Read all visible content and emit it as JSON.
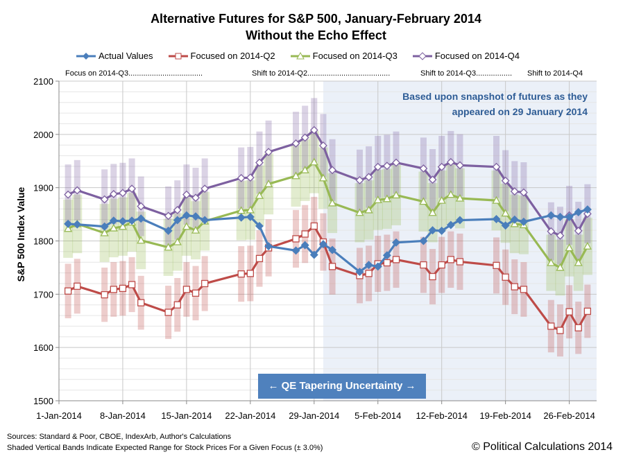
{
  "chart_data": {
    "type": "line",
    "title": "Alternative Futures for S&P 500, January-February 2014",
    "subtitle": "Without the Echo Effect",
    "ylabel": "S&P 500 Index Value",
    "xlabel": "",
    "ylim": [
      1500,
      2100
    ],
    "yticks": [
      1500,
      1600,
      1700,
      1800,
      1900,
      2000,
      2100
    ],
    "xlim": [
      "2014-01-01",
      "2014-03-01"
    ],
    "xticks": [
      {
        "d": "2014-01-01",
        "label": "1-Jan-2014"
      },
      {
        "d": "2014-01-08",
        "label": "8-Jan-2014"
      },
      {
        "d": "2014-01-15",
        "label": "15-Jan-2014"
      },
      {
        "d": "2014-01-22",
        "label": "22-Jan-2014"
      },
      {
        "d": "2014-01-29",
        "label": "29-Jan-2014"
      },
      {
        "d": "2014-02-05",
        "label": "5-Feb-2014"
      },
      {
        "d": "2014-02-12",
        "label": "12-Feb-2014"
      },
      {
        "d": "2014-02-19",
        "label": "19-Feb-2014"
      },
      {
        "d": "2014-02-26",
        "label": "26-Feb-2014"
      }
    ],
    "grid": true,
    "legend_position": "top",
    "band_pct": 3.0,
    "x": [
      "2014-01-02",
      "2014-01-03",
      "2014-01-06",
      "2014-01-07",
      "2014-01-08",
      "2014-01-09",
      "2014-01-10",
      "2014-01-13",
      "2014-01-14",
      "2014-01-15",
      "2014-01-16",
      "2014-01-17",
      "2014-01-21",
      "2014-01-22",
      "2014-01-23",
      "2014-01-24",
      "2014-01-27",
      "2014-01-28",
      "2014-01-29",
      "2014-01-30",
      "2014-01-31",
      "2014-02-03",
      "2014-02-04",
      "2014-02-05",
      "2014-02-06",
      "2014-02-07",
      "2014-02-10",
      "2014-02-11",
      "2014-02-12",
      "2014-02-13",
      "2014-02-14",
      "2014-02-18",
      "2014-02-19",
      "2014-02-20",
      "2014-02-21",
      "2014-02-24",
      "2014-02-25",
      "2014-02-26",
      "2014-02-27",
      "2014-02-28"
    ],
    "series": [
      {
        "name": "Actual Values",
        "color": "#4a7ebb",
        "marker": "diamond",
        "band": false,
        "values": [
          1832,
          1831,
          1827,
          1838,
          1837,
          1838,
          1842,
          1819,
          1839,
          1848,
          1846,
          1839,
          1844,
          1845,
          1828,
          1790,
          1782,
          1792,
          1774,
          1794,
          1783,
          1742,
          1755,
          1752,
          1773,
          1797,
          1800,
          1820,
          1819,
          1830,
          1839,
          1841,
          1829,
          1840,
          1836,
          1848,
          1845,
          1845,
          1854,
          1859
        ]
      },
      {
        "name": "Focused on 2014-Q2",
        "color": "#be4b48",
        "marker": "square",
        "band": true,
        "band_color": "rgba(190,75,72,0.28)",
        "values": [
          1706,
          1715,
          1699,
          1709,
          1711,
          1718,
          1684,
          1666,
          1680,
          1709,
          1702,
          1720,
          1738,
          1739,
          1767,
          1787,
          1804,
          1813,
          1828,
          1798,
          1752,
          1735,
          1739,
          1757,
          1759,
          1765,
          1755,
          1733,
          1755,
          1765,
          1761,
          1754,
          1732,
          1714,
          1709,
          1640,
          1632,
          1667,
          1637,
          1668
        ]
      },
      {
        "name": "Focused on 2014-Q3",
        "color": "#98b954",
        "marker": "triangle",
        "band": true,
        "band_color": "rgba(152,185,84,0.28)",
        "values": [
          1823,
          1832,
          1815,
          1824,
          1827,
          1835,
          1801,
          1788,
          1798,
          1827,
          1820,
          1837,
          1857,
          1858,
          1885,
          1907,
          1922,
          1933,
          1948,
          1918,
          1871,
          1853,
          1858,
          1877,
          1879,
          1886,
          1874,
          1853,
          1876,
          1887,
          1880,
          1876,
          1852,
          1832,
          1830,
          1759,
          1750,
          1787,
          1759,
          1790
        ]
      },
      {
        "name": "Focused on 2014-Q4",
        "color": "#7d60a0",
        "marker": "diamond-open",
        "band": true,
        "band_color": "rgba(125,96,160,0.28)",
        "values": [
          1887,
          1895,
          1878,
          1888,
          1890,
          1898,
          1865,
          1847,
          1858,
          1887,
          1881,
          1898,
          1918,
          1919,
          1947,
          1967,
          1983,
          1994,
          2008,
          1979,
          1933,
          1914,
          1920,
          1939,
          1941,
          1947,
          1936,
          1915,
          1939,
          1948,
          1942,
          1939,
          1913,
          1893,
          1891,
          1818,
          1810,
          1848,
          1819,
          1851
        ]
      }
    ],
    "shaded_region": {
      "from": "2014-01-30",
      "to": "2014-03-01",
      "color": "#ebf0f8"
    },
    "annotations": {
      "focus_labels": [
        "Focus on 2014-Q3...................................",
        "Shift to 2014-Q2.......................................",
        "Shift to 2014-Q3.................",
        "Shift to 2014-Q4"
      ],
      "snapshot": [
        "Based upon snapshot of futures as they",
        "appeared on 29 January 2014"
      ],
      "qe_box": "← QE Tapering Uncertainty →"
    }
  },
  "footer": {
    "sources": "Sources: Standard & Poor, CBOE, IndexArb, Author's Calculations",
    "bands_note": "Shaded Vertical Bands Indicate Expected Range for Stock Prices For a Given Focus (± 3.0%)",
    "copyright": "© Political Calculations 2014"
  }
}
